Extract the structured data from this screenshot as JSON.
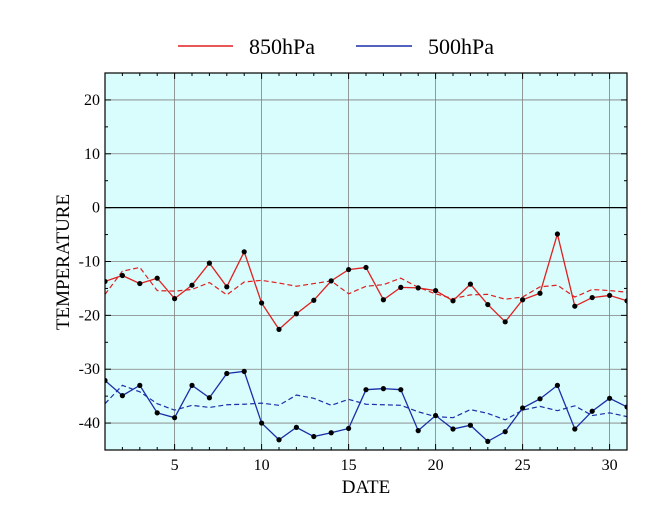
{
  "chart_data": {
    "type": "line",
    "xlabel": "DATE",
    "ylabel": "TEMPERATURE",
    "xlim": [
      1,
      31
    ],
    "ylim": [
      -45,
      25
    ],
    "xticks": [
      5,
      10,
      15,
      20,
      25,
      30
    ],
    "yticks": [
      -40,
      -30,
      -20,
      -10,
      0,
      10,
      20
    ],
    "grid": true,
    "legend_position": "top-center",
    "background_color": "#d9fcfc",
    "x": [
      1,
      2,
      3,
      4,
      5,
      6,
      7,
      8,
      9,
      10,
      11,
      12,
      13,
      14,
      15,
      16,
      17,
      18,
      19,
      20,
      21,
      22,
      23,
      24,
      25,
      26,
      27,
      28,
      29,
      30,
      31
    ],
    "series": [
      {
        "name": "850hPa",
        "color": "#e02020",
        "values": [
          -13.7,
          -12.6,
          -14.1,
          -13.1,
          -16.9,
          -14.4,
          -10.3,
          -14.7,
          -8.2,
          -17.7,
          -22.6,
          -19.7,
          -17.2,
          -13.6,
          -11.5,
          -11.1,
          -17.1,
          -14.8,
          -14.9,
          -15.4,
          -17.3,
          -14.2,
          -18.0,
          -21.2,
          -17.1,
          -15.9,
          -4.9,
          -18.3,
          -16.7,
          -16.3,
          -17.3
        ],
        "climatology": [
          -16.1,
          -11.8,
          -11.1,
          -15.4,
          -15.5,
          -15.2,
          -13.9,
          -16.2,
          -13.8,
          -13.5,
          -14.0,
          -14.6,
          -14.1,
          -13.6,
          -16.0,
          -14.6,
          -14.3,
          -13.1,
          -14.8,
          -16.0,
          -16.9,
          -16.2,
          -16.1,
          -17.0,
          -16.6,
          -14.7,
          -14.4,
          -16.6,
          -15.2,
          -15.4,
          -15.7
        ]
      },
      {
        "name": "500hPa",
        "color": "#1a2ea8",
        "values": [
          -32.1,
          -34.9,
          -33.0,
          -38.1,
          -39.0,
          -33.0,
          -35.3,
          -30.8,
          -30.4,
          -40.0,
          -43.1,
          -40.8,
          -42.5,
          -41.8,
          -41.0,
          -33.8,
          -33.6,
          -33.8,
          -41.4,
          -38.6,
          -41.1,
          -40.4,
          -43.4,
          -41.6,
          -37.2,
          -35.5,
          -33.0,
          -41.1,
          -37.8,
          -35.4,
          -37.0
        ],
        "climatology": [
          -36.4,
          -33.0,
          -34.2,
          -36.4,
          -37.6,
          -36.7,
          -37.1,
          -36.6,
          -36.5,
          -36.3,
          -36.7,
          -34.8,
          -35.4,
          -36.7,
          -35.6,
          -36.5,
          -36.6,
          -36.7,
          -37.9,
          -38.8,
          -39.0,
          -37.5,
          -38.2,
          -39.4,
          -37.6,
          -36.9,
          -37.7,
          -36.8,
          -38.6,
          -38.1,
          -38.8
        ]
      }
    ]
  }
}
